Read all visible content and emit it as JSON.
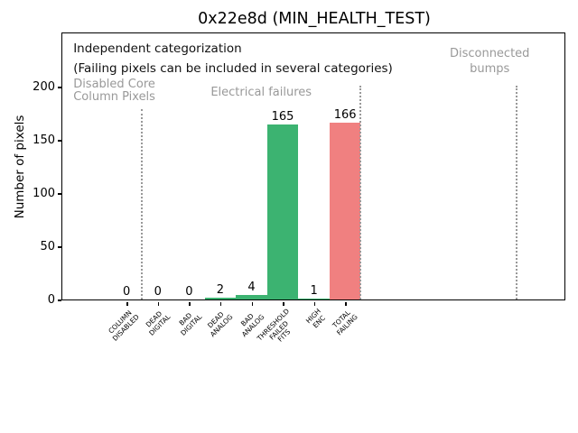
{
  "figure": {
    "title": "0x22e8d (MIN_HEALTH_TEST)"
  },
  "annotation": {
    "line1": "Independent categorization",
    "line2": "(Failing pixels can be included in several categories)"
  },
  "sections": [
    {
      "name": "disabled-core-column-pixels",
      "lines": [
        "Disabled Core",
        "Column Pixels"
      ]
    },
    {
      "name": "electrical-failures",
      "lines": [
        "Electrical failures"
      ]
    },
    {
      "name": "disconnected-bumps",
      "lines": [
        "Disconnected",
        "bumps"
      ]
    }
  ],
  "colors": {
    "bar_green": "#3cb371",
    "bar_coral": "#f08080",
    "section_label_gray": "#999999",
    "separator_gray": "#999999",
    "axis_black": "#000000"
  },
  "chart_data": {
    "type": "bar",
    "title": "0x22e8d (MIN_HEALTH_TEST)",
    "xlabel": "",
    "ylabel": "Number of pixels",
    "categories": [
      "COLUMN\nDISABLED",
      "DEAD\nDIGITAL",
      "BAD\nDIGITAL",
      "DEAD\nANALOG",
      "BAD\nANALOG",
      "THRESHOLD\nFAILED\nFITS",
      "HIGH\nENC",
      "TOTAL\nFAILING"
    ],
    "values": [
      0,
      0,
      0,
      2,
      4,
      165,
      1,
      166
    ],
    "bar_labels": [
      "0",
      "0",
      "0",
      "2",
      "4",
      "165",
      "1",
      "166"
    ],
    "bar_colors": [
      "#3cb371",
      "#3cb371",
      "#3cb371",
      "#3cb371",
      "#3cb371",
      "#3cb371",
      "#3cb371",
      "#f08080"
    ],
    "yticks": [
      0,
      50,
      100,
      150,
      200
    ],
    "ylim": [
      0,
      250
    ],
    "grid": false,
    "legend": null,
    "annotations": [
      "Independent categorization",
      "(Failing pixels can be included in several categories)"
    ],
    "section_labels": [
      "Disabled Core\nColumn Pixels",
      "Electrical failures",
      "Disconnected\nbumps"
    ],
    "section_separators_x": [
      0.5,
      7.5,
      12.5
    ]
  }
}
